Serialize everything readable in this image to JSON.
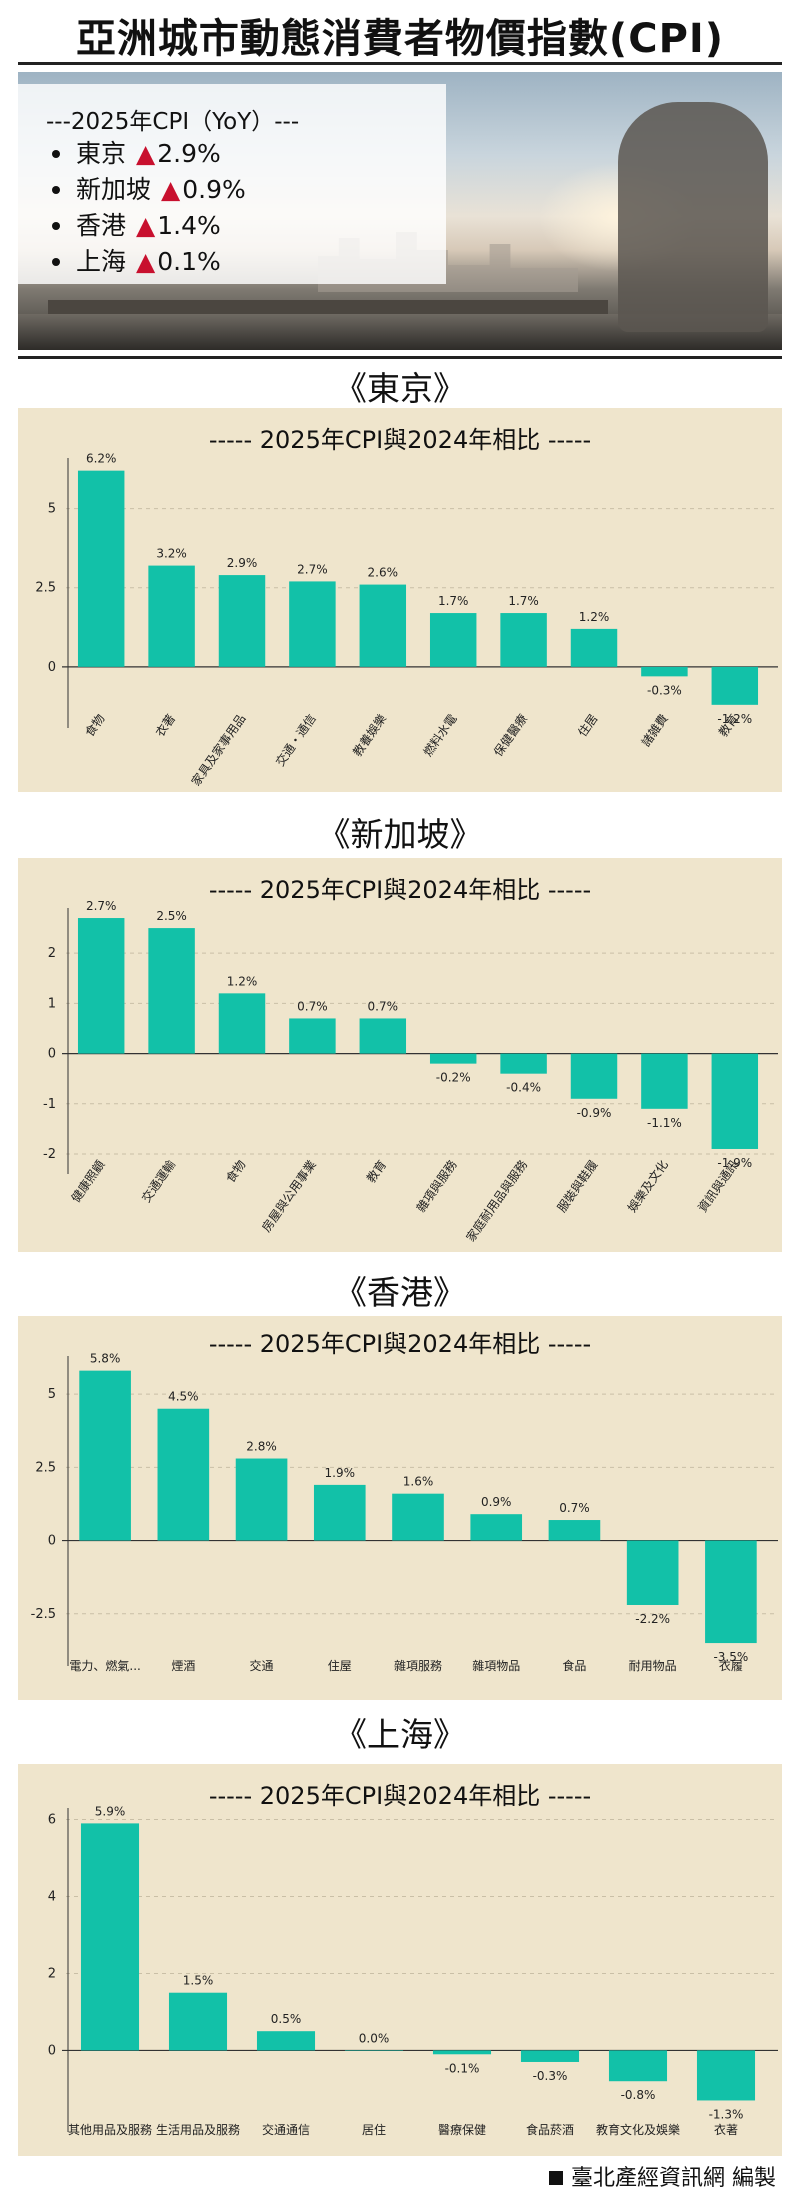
{
  "title": "亞洲城市動態消費者物價指數(CPI)",
  "summary": {
    "heading": "---2025年CPI（YoY）---",
    "items": [
      {
        "city": "東京",
        "value": "2.9%"
      },
      {
        "city": "新加坡",
        "value": "0.9%"
      },
      {
        "city": "香港",
        "value": "1.4%"
      },
      {
        "city": "上海",
        "value": "0.1%"
      }
    ]
  },
  "credit": "臺北產經資訊網 編製",
  "colors": {
    "bar": "#12c1a8",
    "panel": "#efe5cc",
    "up_arrow": "#c8102e"
  },
  "chart_data": [
    {
      "type": "bar",
      "section": "《東京》",
      "title": "----- 2025年CPI與2024年相比 -----",
      "categories": [
        "食物",
        "衣著",
        "家具及家事用品",
        "交通・通信",
        "教養娛樂",
        "燃料水電",
        "保健醫療",
        "住居",
        "諸雑費",
        "教育"
      ],
      "values": [
        6.2,
        3.2,
        2.9,
        2.7,
        2.6,
        1.7,
        1.7,
        1.2,
        -0.3,
        -1.2
      ],
      "labels": [
        "6.2%",
        "3.2%",
        "2.9%",
        "2.7%",
        "2.6%",
        "1.7%",
        "1.7%",
        "1.2%",
        "-0.3%",
        "-1.2%"
      ],
      "yticks": [
        0,
        2.5,
        5
      ],
      "ylim": [
        -1.3,
        6.6
      ],
      "tick_rotate": true,
      "grid": true
    },
    {
      "type": "bar",
      "section": "《新加坡》",
      "title": "----- 2025年CPI與2024年相比 -----",
      "categories": [
        "健康照顧",
        "交通運輸",
        "食物",
        "房屋與公用事業",
        "教育",
        "雜項與服務",
        "家庭耐用品與服務",
        "服裝與鞋履",
        "娛樂及文化",
        "資訊與通訊"
      ],
      "values": [
        2.7,
        2.5,
        1.2,
        0.7,
        0.7,
        -0.2,
        -0.4,
        -0.9,
        -1.1,
        -1.9
      ],
      "labels": [
        "2.7%",
        "2.5%",
        "1.2%",
        "0.7%",
        "0.7%",
        "-0.2%",
        "-0.4%",
        "-0.9%",
        "-1.1%",
        "-1.9%"
      ],
      "yticks": [
        -2,
        -1,
        0,
        1,
        2
      ],
      "ylim": [
        -2.0,
        2.9
      ],
      "tick_rotate": true,
      "grid": true
    },
    {
      "type": "bar",
      "section": "《香港》",
      "title": "----- 2025年CPI與2024年相比 -----",
      "categories": [
        "電力、燃氣...",
        "煙酒",
        "交通",
        "住屋",
        "雜項服務",
        "雜項物品",
        "食品",
        "耐用物品",
        "衣履"
      ],
      "values": [
        5.8,
        4.5,
        2.8,
        1.9,
        1.6,
        0.9,
        0.7,
        -2.2,
        -3.5
      ],
      "labels": [
        "5.8%",
        "4.5%",
        "2.8%",
        "1.9%",
        "1.6%",
        "0.9%",
        "0.7%",
        "-2.2%",
        "-3.5%"
      ],
      "yticks": [
        -2.5,
        0,
        2.5,
        5
      ],
      "ylim": [
        -3.6,
        6.3
      ],
      "tick_rotate": false,
      "grid": true
    },
    {
      "type": "bar",
      "section": "《上海》",
      "title": "----- 2025年CPI與2024年相比 -----",
      "categories": [
        "其他用品及服務",
        "生活用品及服務",
        "交通通信",
        "居住",
        "醫療保健",
        "食品菸酒",
        "教育文化及娛樂",
        "衣著"
      ],
      "values": [
        5.9,
        1.5,
        0.5,
        0.0,
        -0.1,
        -0.3,
        -0.8,
        -1.3
      ],
      "labels": [
        "5.9%",
        "1.5%",
        "0.5%",
        "0.0%",
        "-0.1%",
        "-0.3%",
        "-0.8%",
        "-1.3%"
      ],
      "yticks": [
        0,
        2,
        4,
        6
      ],
      "ylim": [
        -1.6,
        6.3
      ],
      "tick_rotate": false,
      "grid": true
    }
  ]
}
